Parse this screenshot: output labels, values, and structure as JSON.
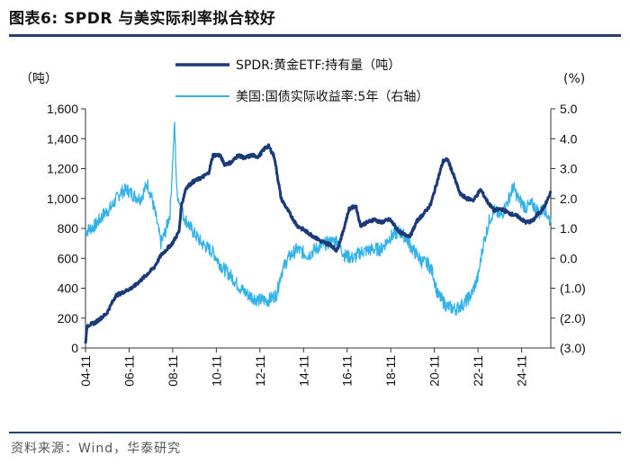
{
  "figure_title": "图表6:  SPDR 与美实际利率拟合较好",
  "source_note": "资料来源：Wind，华泰研究",
  "colors": {
    "spdr": "#1b3a7a",
    "real_rate": "#33b2e8",
    "rule": "#233f73"
  },
  "chart_data": {
    "type": "line",
    "title": "SPDR 与美实际利率拟合较好",
    "y_left": {
      "unit_label": "（吨）",
      "ylim": [
        0,
        1600
      ],
      "ticks": [
        "0",
        "200",
        "400",
        "600",
        "800",
        "1,000",
        "1,200",
        "1,400",
        "1,600"
      ]
    },
    "y_right": {
      "unit_label": "(%)",
      "ylim": [
        -3.0,
        5.0
      ],
      "ticks": [
        "(3.0)",
        "(2.0)",
        "(1.0)",
        "0.0",
        "1.0",
        "2.0",
        "3.0",
        "4.0",
        "5.0"
      ]
    },
    "x_ticks": [
      "04-11",
      "06-11",
      "08-11",
      "10-11",
      "12-11",
      "14-11",
      "16-11",
      "18-11",
      "20-11",
      "22-11",
      "24-11"
    ],
    "x_range": [
      2004.87,
      2025.4
    ],
    "series": [
      {
        "name": "SPDR:黄金ETF:持有量（吨）",
        "axis": "left",
        "points": [
          [
            2004.87,
            40
          ],
          [
            2004.95,
            150
          ],
          [
            2005.3,
            170
          ],
          [
            2005.8,
            230
          ],
          [
            2006.2,
            350
          ],
          [
            2006.5,
            370
          ],
          [
            2007.0,
            410
          ],
          [
            2007.5,
            480
          ],
          [
            2007.9,
            540
          ],
          [
            2008.2,
            620
          ],
          [
            2008.7,
            700
          ],
          [
            2009.0,
            780
          ],
          [
            2009.1,
            950
          ],
          [
            2009.3,
            1070
          ],
          [
            2009.6,
            1110
          ],
          [
            2010.0,
            1140
          ],
          [
            2010.3,
            1170
          ],
          [
            2010.5,
            1290
          ],
          [
            2010.8,
            1290
          ],
          [
            2011.0,
            1230
          ],
          [
            2011.3,
            1240
          ],
          [
            2011.6,
            1290
          ],
          [
            2011.9,
            1270
          ],
          [
            2012.2,
            1290
          ],
          [
            2012.5,
            1280
          ],
          [
            2012.8,
            1340
          ],
          [
            2012.95,
            1350
          ],
          [
            2013.2,
            1280
          ],
          [
            2013.5,
            1000
          ],
          [
            2013.8,
            920
          ],
          [
            2014.2,
            820
          ],
          [
            2014.6,
            780
          ],
          [
            2015.0,
            740
          ],
          [
            2015.3,
            710
          ],
          [
            2015.7,
            690
          ],
          [
            2015.95,
            650
          ],
          [
            2016.2,
            760
          ],
          [
            2016.5,
            930
          ],
          [
            2016.8,
            950
          ],
          [
            2017.0,
            820
          ],
          [
            2017.3,
            840
          ],
          [
            2017.6,
            860
          ],
          [
            2017.9,
            840
          ],
          [
            2018.3,
            860
          ],
          [
            2018.7,
            780
          ],
          [
            2018.9,
            760
          ],
          [
            2019.2,
            750
          ],
          [
            2019.5,
            850
          ],
          [
            2019.8,
            900
          ],
          [
            2020.1,
            960
          ],
          [
            2020.4,
            1120
          ],
          [
            2020.65,
            1250
          ],
          [
            2020.85,
            1260
          ],
          [
            2021.1,
            1160
          ],
          [
            2021.4,
            1030
          ],
          [
            2021.7,
            1000
          ],
          [
            2022.0,
            990
          ],
          [
            2022.3,
            1060
          ],
          [
            2022.6,
            980
          ],
          [
            2022.9,
            920
          ],
          [
            2023.2,
            930
          ],
          [
            2023.6,
            900
          ],
          [
            2023.95,
            880
          ],
          [
            2024.3,
            840
          ],
          [
            2024.6,
            850
          ],
          [
            2024.85,
            900
          ],
          [
            2025.1,
            940
          ],
          [
            2025.4,
            1040
          ]
        ]
      },
      {
        "name": "美国:国债实际收益率:5年（右轴）",
        "axis": "right",
        "points": [
          [
            2004.87,
            0.9
          ],
          [
            2005.3,
            1.1
          ],
          [
            2005.7,
            1.5
          ],
          [
            2006.0,
            1.7
          ],
          [
            2006.4,
            2.2
          ],
          [
            2006.7,
            2.3
          ],
          [
            2007.0,
            2.1
          ],
          [
            2007.3,
            2.0
          ],
          [
            2007.6,
            2.5
          ],
          [
            2007.8,
            2.0
          ],
          [
            2008.0,
            1.3
          ],
          [
            2008.2,
            0.5
          ],
          [
            2008.4,
            0.9
          ],
          [
            2008.6,
            1.5
          ],
          [
            2008.8,
            4.5
          ],
          [
            2008.9,
            2.2
          ],
          [
            2009.2,
            1.4
          ],
          [
            2009.6,
            0.9
          ],
          [
            2010.0,
            0.5
          ],
          [
            2010.5,
            0.2
          ],
          [
            2010.9,
            -0.3
          ],
          [
            2011.3,
            -0.6
          ],
          [
            2011.7,
            -1.0
          ],
          [
            2012.0,
            -1.2
          ],
          [
            2012.5,
            -1.4
          ],
          [
            2012.95,
            -1.4
          ],
          [
            2013.3,
            -1.2
          ],
          [
            2013.5,
            -0.5
          ],
          [
            2013.8,
            0.0
          ],
          [
            2014.2,
            0.3
          ],
          [
            2014.7,
            0.1
          ],
          [
            2015.0,
            0.3
          ],
          [
            2015.5,
            0.5
          ],
          [
            2015.95,
            0.6
          ],
          [
            2016.3,
            0.1
          ],
          [
            2016.7,
            0.0
          ],
          [
            2017.0,
            0.2
          ],
          [
            2017.5,
            0.3
          ],
          [
            2017.9,
            0.3
          ],
          [
            2018.3,
            0.7
          ],
          [
            2018.7,
            0.9
          ],
          [
            2019.0,
            0.7
          ],
          [
            2019.3,
            0.3
          ],
          [
            2019.7,
            -0.1
          ],
          [
            2020.0,
            -0.2
          ],
          [
            2020.2,
            -0.5
          ],
          [
            2020.4,
            -1.2
          ],
          [
            2020.8,
            -1.6
          ],
          [
            2021.2,
            -1.7
          ],
          [
            2021.6,
            -1.5
          ],
          [
            2021.9,
            -1.2
          ],
          [
            2022.2,
            -0.6
          ],
          [
            2022.4,
            0.4
          ],
          [
            2022.7,
            1.3
          ],
          [
            2022.9,
            1.6
          ],
          [
            2023.2,
            1.4
          ],
          [
            2023.5,
            1.9
          ],
          [
            2023.75,
            2.4
          ],
          [
            2023.95,
            2.0
          ],
          [
            2024.3,
            1.7
          ],
          [
            2024.6,
            1.8
          ],
          [
            2024.9,
            1.5
          ],
          [
            2025.1,
            1.7
          ],
          [
            2025.4,
            1.2
          ]
        ]
      }
    ]
  }
}
